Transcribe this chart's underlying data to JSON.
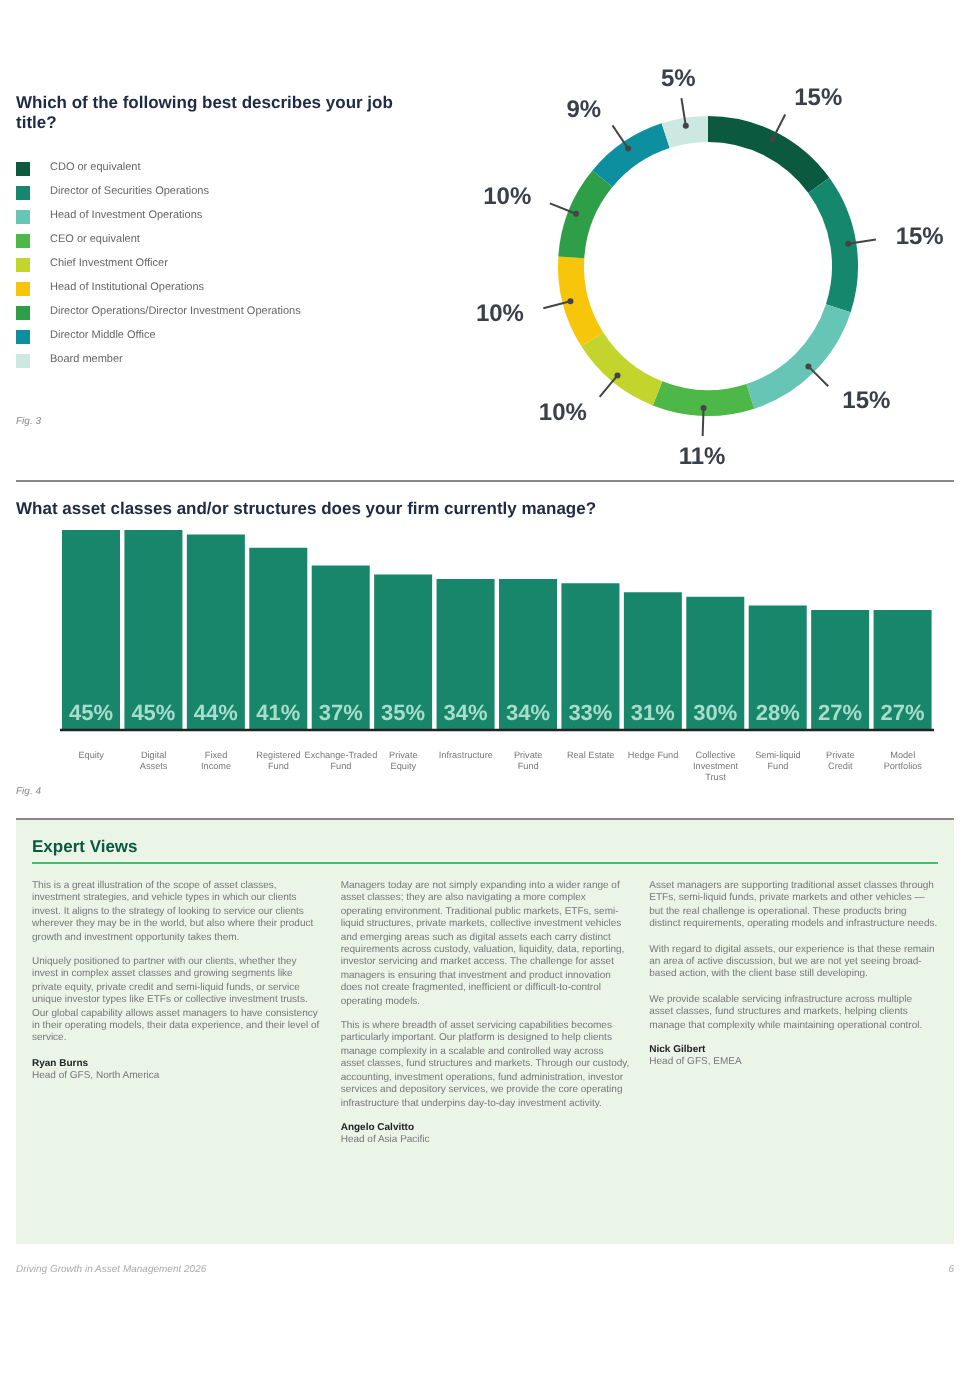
{
  "chart_data": [
    {
      "type": "donut",
      "title": "Which of the following best describes your job title?",
      "categories": [
        "CDO or equivalent",
        "Director of Securities Operations",
        "Head of Investment Operations",
        "CEO or equivalent",
        "Chief Investment Officer",
        "Head of Institutional Operations",
        "Director Operations/Director Investment Operations",
        "Director Middle Office",
        "Board member"
      ],
      "values": [
        15,
        15,
        15,
        11,
        10,
        10,
        10,
        9,
        5
      ],
      "value_labels": [
        "15%",
        "15%",
        "15%",
        "11%",
        "10%",
        "10%",
        "10%",
        "9%",
        "5%"
      ],
      "colors": [
        "#0b5a3f",
        "#14876c",
        "#66c5b5",
        "#4db848",
        "#c3d42c",
        "#f7c60a",
        "#2e9e48",
        "#0e8fa0",
        "#cde8e0"
      ],
      "legend": "left",
      "annotations": [
        "Fig. 3"
      ]
    },
    {
      "type": "bar",
      "title": "What asset classes and/or structures does your firm currently manage?",
      "categories": [
        "Equity",
        "Digital Assets",
        "Fixed Income",
        "Registered Fund",
        "Exchange-Traded Fund",
        "Private Equity",
        "Infrastructure",
        "Private Fund",
        "Real Estate",
        "Hedge Fund",
        "Collective Investment Trust",
        "Semi-liquid Fund",
        "Private Credit",
        "Model Portfolios"
      ],
      "values": [
        45,
        45,
        44,
        41,
        37,
        35,
        34,
        34,
        33,
        31,
        30,
        28,
        27,
        27
      ],
      "value_labels": [
        "45%",
        "45%",
        "44%",
        "41%",
        "37%",
        "35%",
        "34%",
        "34%",
        "33%",
        "31%",
        "30%",
        "28%",
        "27%",
        "27%"
      ],
      "color": "#17866b",
      "annotations": [
        "Fig. 4"
      ]
    },
    {
      "type": "other",
      "title": "Expert Views",
      "annotations": [
        "This is a great illustration of the scope of asset classes, investment strategies, and vehicle types in which our clients invest. It aligns to the strategy of looking to service our clients wherever they may be in the world, but also where their product growth and investment opportunity takes them.",
        "Uniquely positioned to partner with our clients, whether they invest in complex asset classes and growing segments like private equity, private credit and semi-liquid funds, or service unique investor types like ETFs or collective investment trusts. Our global capability allows asset managers to have consistency in their operating models, their data experience, and their level of service.",
        "Ryan Burns",
        "Head of GFS, North America",
        "Managers today are not simply expanding into a wider range of asset classes; they are also navigating a more complex operating environment. Traditional public markets, ETFs, semi-liquid structures, private markets, collective investment vehicles and emerging areas such as digital assets each carry distinct requirements across custody, valuation, liquidity, data, reporting, investor servicing and market access. The challenge for asset managers is ensuring that investment and product innovation does not create fragmented, inefficient or difficult-to-control operating models.",
        "This is where breadth of asset servicing capabilities becomes particularly important. Our platform is designed to help clients manage complexity in a scalable and controlled way across asset classes, fund structures and markets. Through our custody, accounting, investment operations, fund administration, investor services and depository services, we provide the core operating infrastructure that underpins day-to-day investment activity.",
        "Angelo Calvitto",
        "Head of Asia Pacific",
        "Asset managers are supporting traditional asset classes through ETFs, semi-liquid funds, private markets and other vehicles — but the real challenge is operational. These products bring distinct requirements, operating models and infrastructure needs.",
        "With regard to digital assets, our experience is that these remain an area of active discussion, but we are not yet seeing broad-based action, with the client base still developing.",
        "We provide scalable servicing infrastructure across multiple asset classes, fund structures and markets, helping clients manage that complexity while maintaining operational control.",
        "Nick Gilbert",
        "Head of GFS, EMEA",
        "Driving Growth in Asset Management 2026",
        "6"
      ]
    }
  ]
}
